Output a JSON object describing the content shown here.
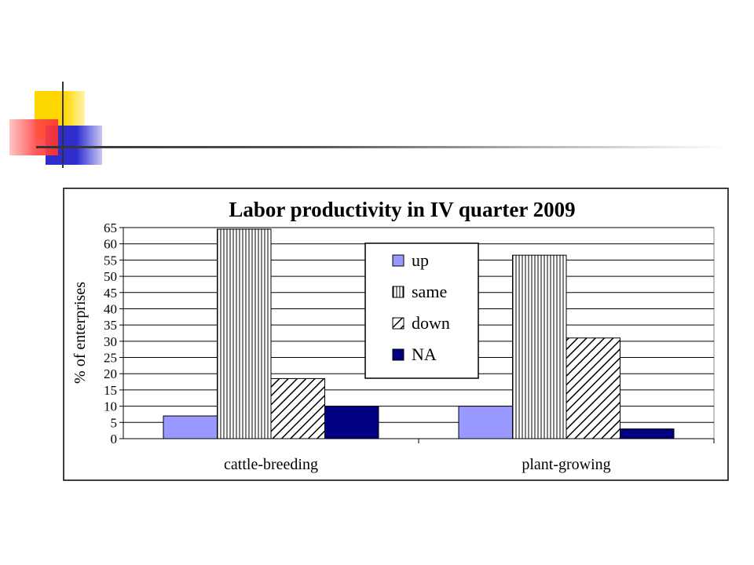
{
  "slide": {
    "decor_colors": {
      "yellow": "#FFD700",
      "red": "#FF5A5A",
      "blue": "#3636D9",
      "line": "#333333"
    }
  },
  "chart_data": {
    "type": "bar",
    "title": "Labor productivity in IV quarter 2009",
    "xlabel": "",
    "ylabel": "% of enterprises",
    "ylim": [
      0,
      65
    ],
    "yticks": [
      0,
      5,
      10,
      15,
      20,
      25,
      30,
      35,
      40,
      45,
      50,
      55,
      60,
      65
    ],
    "categories": [
      "cattle-breeding",
      "plant-growing"
    ],
    "series": [
      {
        "name": "up",
        "values": [
          7,
          10
        ],
        "fill": "#9999FF",
        "pattern": "solid"
      },
      {
        "name": "same",
        "values": [
          64.5,
          56.5
        ],
        "fill": "#FFFFFF",
        "pattern": "vertical-lines"
      },
      {
        "name": "down",
        "values": [
          18.5,
          31
        ],
        "fill": "#FFFFFF",
        "pattern": "diagonal-lines"
      },
      {
        "name": "NA",
        "values": [
          10,
          3
        ],
        "fill": "#000080",
        "pattern": "solid"
      }
    ],
    "grid": true,
    "legend_position": "center"
  }
}
